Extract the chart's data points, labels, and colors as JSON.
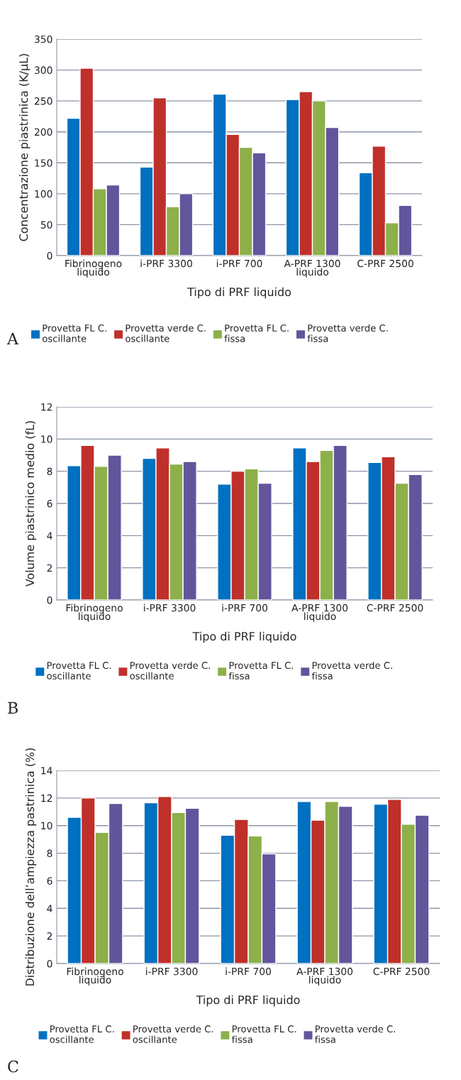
{
  "chart_data": [
    {
      "type": "bar",
      "xlabel": "Tipo di PRF liquido",
      "ylabel": "Concentrazione piastrinica (K/µL)",
      "categories": [
        "Fibrinogeno\nliquido",
        "i-PRF 3300",
        "i-PRF 700",
        "A-PRF 1300\nliquido",
        "C-PRF 2500"
      ],
      "ylim": [
        0,
        350
      ],
      "yticks": [
        0,
        50,
        100,
        150,
        200,
        250,
        300,
        350
      ],
      "grid": "y",
      "legend": "bottom",
      "annotations": [
        "A"
      ],
      "series": [
        {
          "name": "Provetta FL C.\noscillante",
          "color": "#0070c0",
          "values": [
            222,
            143,
            261,
            252,
            134
          ]
        },
        {
          "name": "Provetta verde C.\noscillante",
          "color": "#c0302a",
          "values": [
            303,
            255,
            196,
            265,
            177
          ]
        },
        {
          "name": "Provetta FL C.\nfissa",
          "color": "#8db04a",
          "values": [
            108,
            79,
            175,
            250,
            53
          ]
        },
        {
          "name": "Provetta verde C.\nfissa",
          "color": "#62559c",
          "values": [
            114,
            100,
            166,
            207,
            81
          ]
        }
      ]
    },
    {
      "type": "bar",
      "xlabel": "Tipo di PRF liquido",
      "ylabel": "Volume piastrinico medio (fL)",
      "categories": [
        "Fibrinogeno\nliquido",
        "i-PRF 3300",
        "i-PRF 700",
        "A-PRF 1300\nliquido",
        "C-PRF 2500"
      ],
      "ylim": [
        0,
        12
      ],
      "yticks": [
        0,
        2,
        4,
        6,
        8,
        10,
        12
      ],
      "grid": "y",
      "legend": "bottom",
      "annotations": [
        "B"
      ],
      "series": [
        {
          "name": "Provetta FL C.\noscillante",
          "color": "#0070c0",
          "values": [
            8.35,
            8.8,
            7.2,
            9.45,
            8.55
          ]
        },
        {
          "name": "Provetta verde C.\noscillante",
          "color": "#c0302a",
          "values": [
            9.6,
            9.45,
            8.0,
            8.6,
            8.9
          ]
        },
        {
          "name": "Provetta FL C.\nfissa",
          "color": "#8db04a",
          "values": [
            8.3,
            8.45,
            8.15,
            9.3,
            7.25
          ]
        },
        {
          "name": "Provetta verde C.\nfissa",
          "color": "#62559c",
          "values": [
            9.0,
            8.6,
            7.25,
            9.6,
            7.8
          ]
        }
      ]
    },
    {
      "type": "bar",
      "xlabel": "Tipo di PRF liquido",
      "ylabel": "Distribuzione dell’ampiezza pastrinica (%)",
      "categories": [
        "Fibrinogeno\nliquido",
        "i-PRF 3300",
        "i-PRF 700",
        "A-PRF 1300\nliquido",
        "C-PRF 2500"
      ],
      "ylim": [
        0,
        14
      ],
      "yticks": [
        0,
        2,
        4,
        6,
        8,
        10,
        12,
        14
      ],
      "grid": "y",
      "legend": "bottom",
      "annotations": [
        "C"
      ],
      "series": [
        {
          "name": "Provetta FL C.\noscillante",
          "color": "#0070c0",
          "values": [
            10.6,
            11.65,
            9.3,
            11.75,
            11.55
          ]
        },
        {
          "name": "Provetta verde C.\noscillante",
          "color": "#c0302a",
          "values": [
            12.0,
            12.1,
            10.45,
            10.4,
            11.9
          ]
        },
        {
          "name": "Provetta FL C.\nfissa",
          "color": "#8db04a",
          "values": [
            9.5,
            10.95,
            9.25,
            11.75,
            10.1
          ]
        },
        {
          "name": "Provetta verde C.\nfissa",
          "color": "#62559c",
          "values": [
            11.6,
            11.25,
            7.95,
            11.4,
            10.75
          ]
        }
      ]
    }
  ]
}
